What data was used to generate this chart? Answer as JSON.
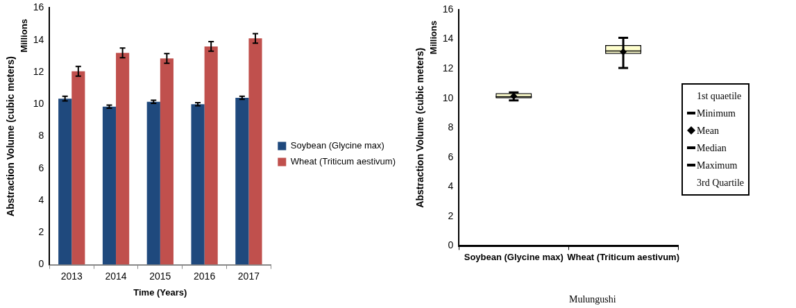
{
  "chart_data": [
    {
      "type": "bar",
      "xlabel": "Time (Years)",
      "ylabel": "Abstraction Volume (cubic meters)",
      "annotations": [
        "Millions"
      ],
      "categories": [
        "2013",
        "2014",
        "2015",
        "2016",
        "2017"
      ],
      "series": [
        {
          "name": "Soybean (Glycine max)",
          "color": "#1f497d",
          "values": [
            10.35,
            9.85,
            10.15,
            10.0,
            10.4
          ],
          "errors": [
            0.15,
            0.1,
            0.1,
            0.1,
            0.1
          ]
        },
        {
          "name": "Wheat (Triticum aestivum)",
          "color": "#c0504d",
          "values": [
            12.05,
            13.2,
            12.85,
            13.6,
            14.1
          ],
          "errors": [
            0.3,
            0.3,
            0.3,
            0.3,
            0.3
          ]
        }
      ],
      "ylim": [
        0,
        16
      ],
      "yticks": [
        0,
        2,
        4,
        6,
        8,
        10,
        12,
        14,
        16
      ],
      "legend": "right"
    },
    {
      "type": "box",
      "ylabel": "Abstraction Volume (cubic meters)",
      "annotations": [
        "Millions",
        "1st quaetile",
        "Minimum",
        "Mean",
        "Median",
        "Maximum",
        "3rd Quartile",
        "Mulungushi"
      ],
      "categories": [
        "Soybean (Glycine max)",
        "Wheat (Triticum aestivum)"
      ],
      "color": "#ffffcc",
      "boxes": [
        {
          "low": 9.85,
          "q1": 10.0,
          "median": 10.1,
          "q3": 10.35,
          "high": 10.4,
          "mean": 10.15
        },
        {
          "low": 12.05,
          "q1": 13.0,
          "median": 13.2,
          "q3": 13.6,
          "high": 14.1,
          "mean": 13.15
        }
      ],
      "ylim": [
        0,
        16
      ],
      "yticks": [
        0,
        2,
        4,
        6,
        8,
        10,
        12,
        14,
        16
      ]
    }
  ]
}
